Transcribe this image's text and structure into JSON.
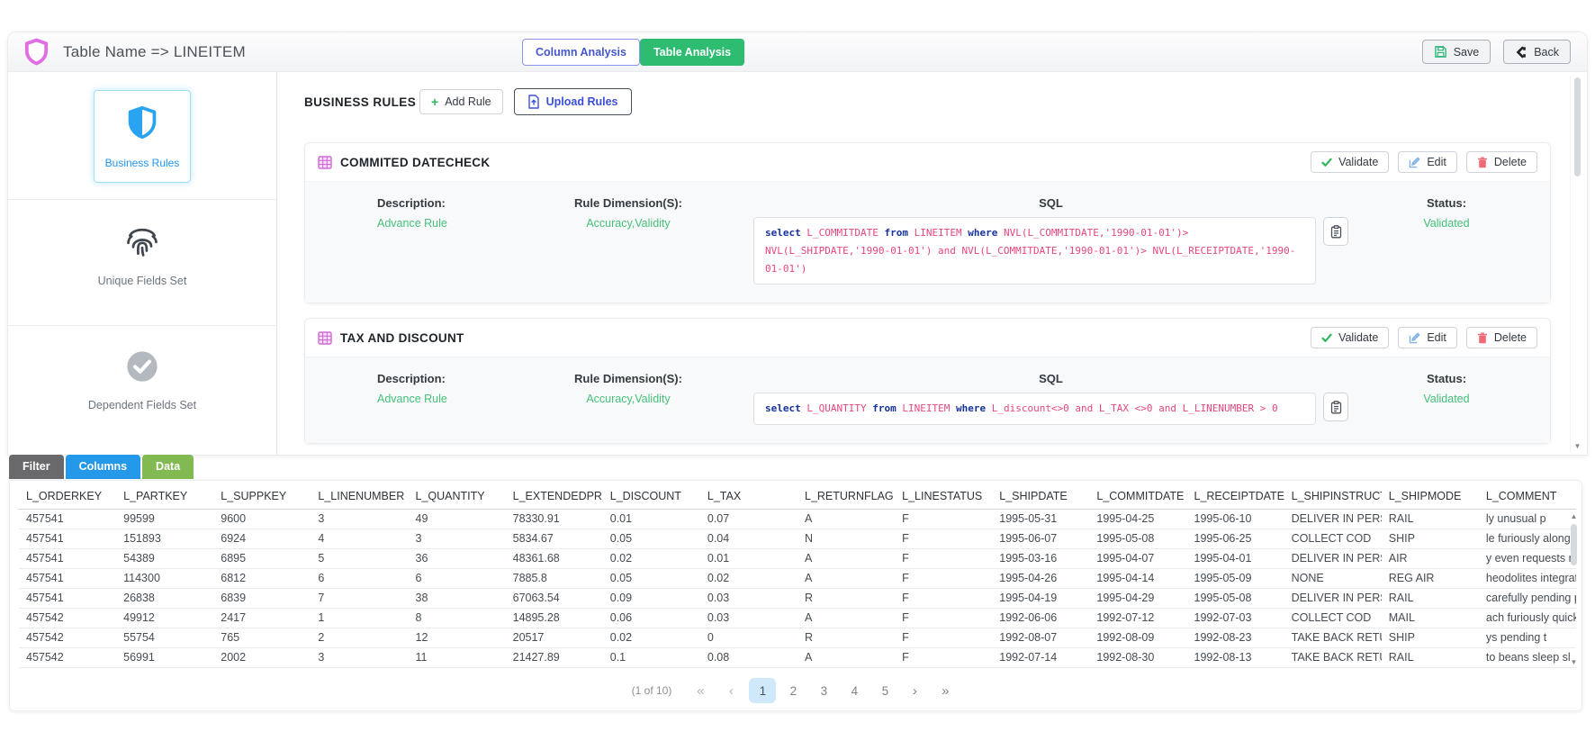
{
  "header": {
    "title": "Table Name => LINEITEM",
    "tabs": [
      {
        "label": "Column Analysis",
        "active": false
      },
      {
        "label": "Table Analysis",
        "active": true
      }
    ],
    "save_label": "Save",
    "back_label": "Back"
  },
  "sidebar": {
    "items": [
      {
        "label": "Business Rules",
        "icon": "shield-icon",
        "active": true
      },
      {
        "label": "Unique Fields Set",
        "icon": "fingerprint-icon",
        "active": false
      },
      {
        "label": "Dependent Fields Set",
        "icon": "check-circle-icon",
        "active": false
      }
    ]
  },
  "rules_section": {
    "title": "BUSINESS RULES",
    "add_rule_label": "Add Rule",
    "upload_rules_label": "Upload Rules",
    "labels": {
      "description": "Description:",
      "dimension": "Rule Dimension(S):",
      "sql": "SQL",
      "status": "Status:",
      "validate": "Validate",
      "edit": "Edit",
      "delete": "Delete"
    },
    "cards": [
      {
        "name": "COMMITED DATECHECK",
        "description": "Advance Rule",
        "dimension": "Accuracy,Validity",
        "status": "Validated",
        "sql_tokens": [
          {
            "k": "kw",
            "t": "select"
          },
          {
            "k": "id",
            "t": " L_COMMITDATE "
          },
          {
            "k": "kw",
            "t": "from"
          },
          {
            "k": "id",
            "t": " LINEITEM "
          },
          {
            "k": "kw",
            "t": "where"
          },
          {
            "k": "id",
            "t": " NVL(L_COMMITDATE,'1990-01-01')> NVL(L_SHIPDATE,'1990-01-01') and NVL(L_COMMITDATE,'1990-01-01')> NVL(L_RECEIPTDATE,'1990-01-01')"
          }
        ]
      },
      {
        "name": "TAX AND DISCOUNT",
        "description": "Advance Rule",
        "dimension": "Accuracy,Validity",
        "status": "Validated",
        "sql_tokens": [
          {
            "k": "kw",
            "t": "select"
          },
          {
            "k": "id",
            "t": " L_QUANTITY "
          },
          {
            "k": "kw",
            "t": "from"
          },
          {
            "k": "id",
            "t": " LINEITEM "
          },
          {
            "k": "kw",
            "t": "where"
          },
          {
            "k": "id",
            "t": " L_discount<>0 and L_TAX <>0 and L_LINENUMBER > 0"
          }
        ]
      }
    ]
  },
  "bottom": {
    "tabs": [
      {
        "label": "Filter",
        "color": "#69696b",
        "active": false
      },
      {
        "label": "Columns",
        "color": "#2499ea",
        "active": false
      },
      {
        "label": "Data",
        "color": "#82ba51",
        "active": true
      }
    ],
    "table": {
      "columns": [
        "L_ORDERKEY",
        "L_PARTKEY",
        "L_SUPPKEY",
        "L_LINENUMBER",
        "L_QUANTITY",
        "L_EXTENDEDPRICE",
        "L_DISCOUNT",
        "L_TAX",
        "L_RETURNFLAG",
        "L_LINESTATUS",
        "L_SHIPDATE",
        "L_COMMITDATE",
        "L_RECEIPTDATE",
        "L_SHIPINSTRUCT",
        "L_SHIPMODE",
        "L_COMMENT"
      ],
      "rows": [
        [
          "457541",
          "99599",
          "9600",
          "3",
          "49",
          "78330.91",
          "0.01",
          "0.07",
          "A",
          "F",
          "1995-05-31",
          "1995-04-25",
          "1995-06-10",
          "DELIVER IN PERSO",
          "RAIL",
          "ly unusual p"
        ],
        [
          "457541",
          "151893",
          "6924",
          "4",
          "3",
          "5834.67",
          "0.05",
          "0.04",
          "N",
          "F",
          "1995-06-07",
          "1995-05-08",
          "1995-06-25",
          "COLLECT COD",
          "SHIP",
          "le furiously alongsi"
        ],
        [
          "457541",
          "54389",
          "6895",
          "5",
          "36",
          "48361.68",
          "0.02",
          "0.01",
          "A",
          "F",
          "1995-03-16",
          "1995-04-07",
          "1995-04-01",
          "DELIVER IN PERSO",
          "AIR",
          "y even requests ma"
        ],
        [
          "457541",
          "114300",
          "6812",
          "6",
          "6",
          "7885.8",
          "0.05",
          "0.02",
          "A",
          "F",
          "1995-04-26",
          "1995-04-14",
          "1995-05-09",
          "NONE",
          "REG AIR",
          "heodolites integrat"
        ],
        [
          "457541",
          "26838",
          "6839",
          "7",
          "38",
          "67063.54",
          "0.09",
          "0.03",
          "R",
          "F",
          "1995-04-19",
          "1995-04-29",
          "1995-05-08",
          "DELIVER IN PERSO",
          "RAIL",
          "carefully pending p"
        ],
        [
          "457542",
          "49912",
          "2417",
          "1",
          "8",
          "14895.28",
          "0.06",
          "0.03",
          "A",
          "F",
          "1992-06-06",
          "1992-07-12",
          "1992-07-03",
          "COLLECT COD",
          "MAIL",
          "ach furiously quick"
        ],
        [
          "457542",
          "55754",
          "765",
          "2",
          "12",
          "20517",
          "0.02",
          "0",
          "R",
          "F",
          "1992-08-07",
          "1992-08-09",
          "1992-08-23",
          "TAKE BACK RETURI",
          "SHIP",
          "ys pending t"
        ],
        [
          "457542",
          "56991",
          "2002",
          "3",
          "11",
          "21427.89",
          "0.1",
          "0.08",
          "A",
          "F",
          "1992-07-14",
          "1992-08-30",
          "1992-08-13",
          "TAKE BACK RETURI",
          "RAIL",
          "to beans sleep sl"
        ]
      ]
    },
    "pagination": {
      "summary": "(1 of 10)",
      "first": "«",
      "prev": "‹",
      "next": "›",
      "last": "»",
      "pages": [
        "1",
        "2",
        "3",
        "4",
        "5"
      ],
      "current": "1"
    }
  },
  "colors": {
    "brand_pink": "#df6fe2",
    "primary_blue": "#2196f3",
    "active_green": "#2ebd70",
    "value_green": "#45c079",
    "sql_keyword": "#16339d",
    "sql_identifier": "#e8467c",
    "tab_filter": "#69696b",
    "tab_columns": "#2499ea",
    "tab_data": "#82ba51",
    "page_current_bg": "#cfe9fb"
  }
}
